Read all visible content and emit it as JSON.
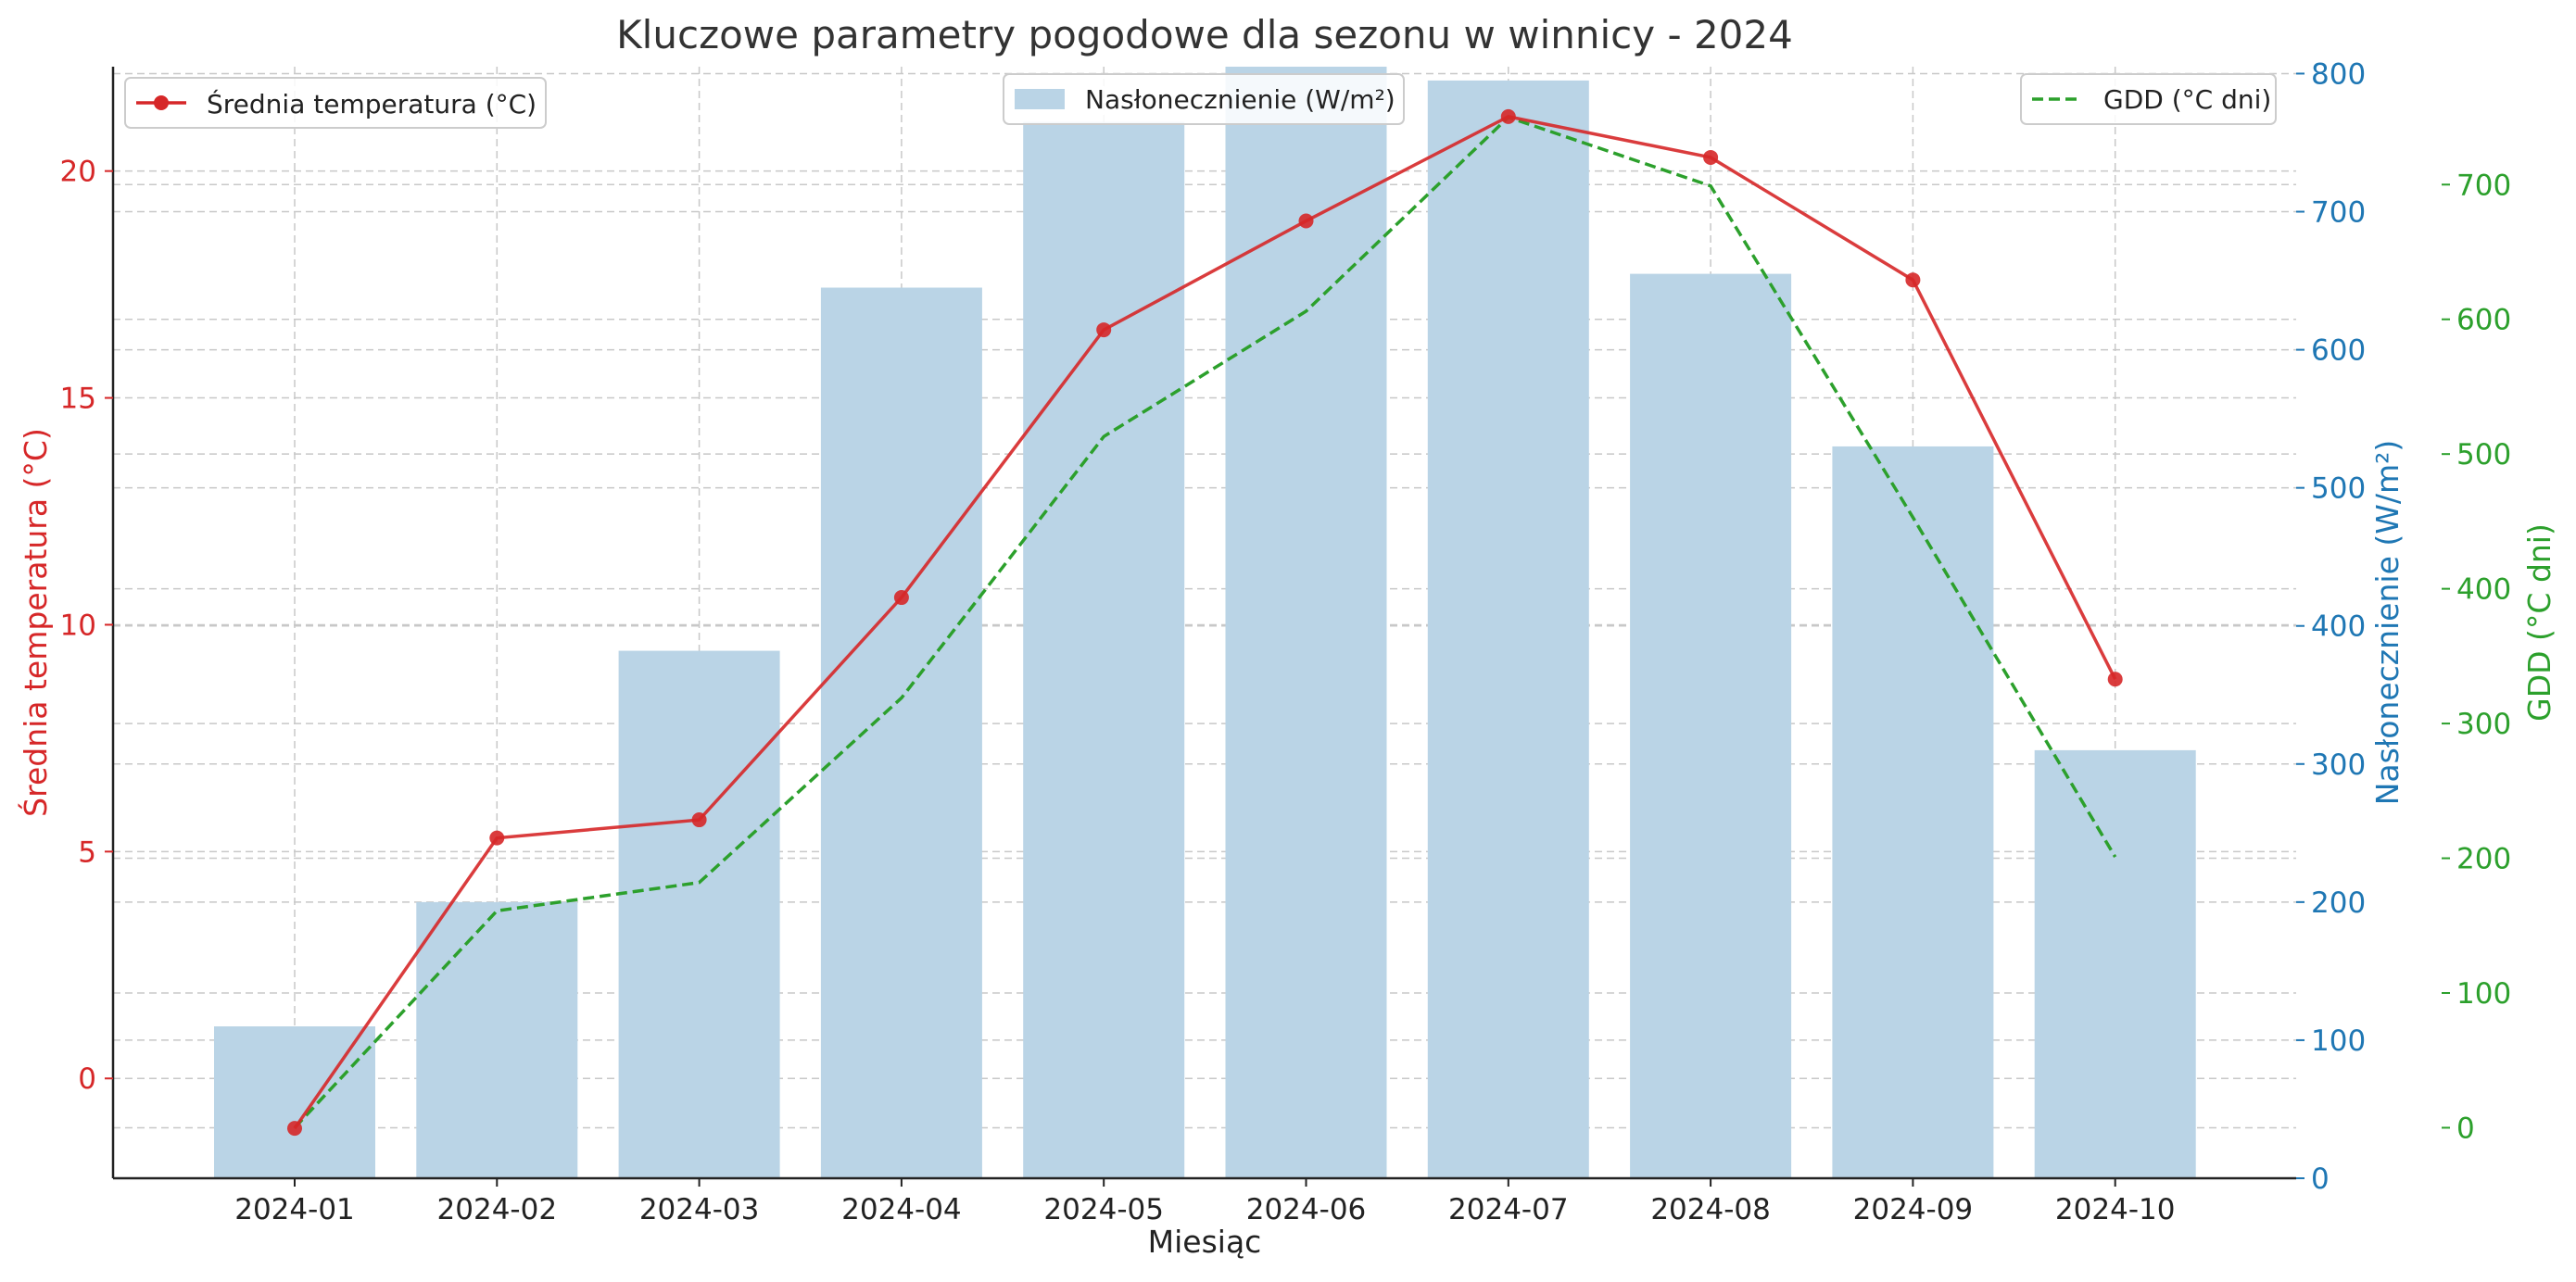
{
  "chart_data": {
    "type": "bar",
    "title": "Kluczowe parametry pogodowe dla sezonu w winnicy - 2024",
    "xlabel": "Miesiąc",
    "categories": [
      "2024-01",
      "2024-02",
      "2024-03",
      "2024-04",
      "2024-05",
      "2024-06",
      "2024-07",
      "2024-08",
      "2024-09",
      "2024-10"
    ],
    "grid": true,
    "series": [
      {
        "name": "Średnia temperatura (°C)",
        "kind": "line",
        "marker": "circle",
        "axis": "left",
        "color": "#d62728",
        "values": [
          -1.1,
          5.3,
          5.7,
          10.6,
          16.5,
          18.9,
          21.2,
          20.3,
          17.6,
          8.8
        ]
      },
      {
        "name": "Nasłonecznienie (W/m²)",
        "kind": "bar",
        "axis": "right",
        "color": "#bad4e6",
        "values": [
          110,
          200,
          382,
          645,
          765,
          805,
          795,
          655,
          530,
          310
        ]
      },
      {
        "name": "GDD (°C dni)",
        "kind": "line",
        "style": "dashed",
        "axis": "right2",
        "color": "#2ca02c",
        "values": [
          0,
          161,
          182,
          319,
          513,
          606,
          750,
          699,
          453,
          201
        ]
      }
    ],
    "axes": {
      "left": {
        "label": "Średnia temperatura (°C)",
        "color": "#d62728",
        "ylim": [
          -2.2,
          22.3
        ],
        "ticks": [
          0,
          5,
          10,
          15,
          20
        ]
      },
      "right": {
        "label": "Nasłonecznienie (W/m²)",
        "color": "#1f77b4",
        "ylim": [
          0,
          805
        ],
        "ticks": [
          0,
          100,
          200,
          300,
          400,
          500,
          600,
          700,
          800
        ]
      },
      "right2": {
        "label": "GDD (°C dni)",
        "color": "#2ca02c",
        "ylim": [
          -37.5,
          787.5
        ],
        "ticks": [
          0,
          100,
          200,
          300,
          400,
          500,
          600,
          700
        ]
      }
    },
    "legends": {
      "temperature": {
        "placement": "top-left",
        "label": "Średnia temperatura (°C)"
      },
      "sunshine": {
        "placement": "top-center",
        "label": "Nasłonecznienie (W/m²)"
      },
      "gdd": {
        "placement": "top-right",
        "label": "GDD (°C dni)"
      }
    }
  }
}
